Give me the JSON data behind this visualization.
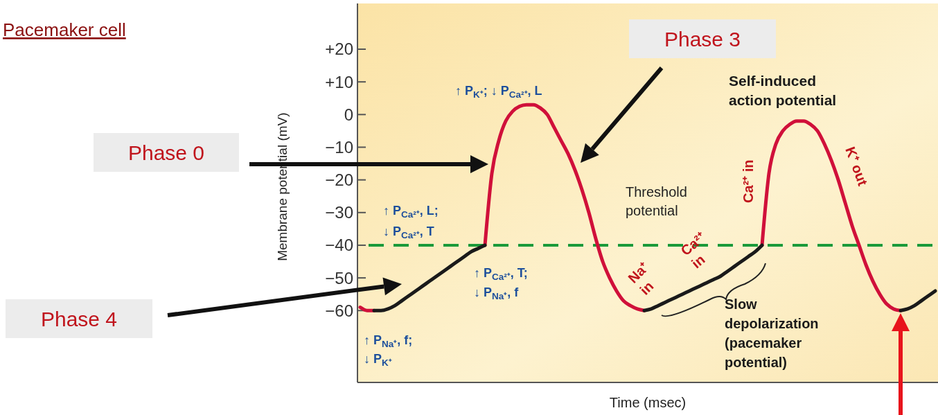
{
  "chart_data": {
    "type": "line",
    "title": "Pacemaker cell",
    "xlabel": "Time (msec)",
    "ylabel": "Membrane potential (mV)",
    "categories": [
      null,
      null,
      null,
      null,
      null,
      null,
      null,
      null,
      null,
      null,
      null,
      null,
      null,
      null,
      null,
      null,
      null,
      null,
      null,
      null,
      null,
      null,
      null,
      null,
      null,
      null,
      null,
      null,
      null,
      null,
      null,
      null,
      null,
      null,
      null,
      null,
      null,
      null,
      null,
      null,
      null,
      null,
      null,
      null,
      null,
      null,
      null,
      null,
      null,
      null,
      null,
      null,
      null,
      null,
      null,
      null,
      null,
      null,
      null,
      null,
      null,
      null,
      null,
      null,
      null,
      null,
      null,
      null,
      null,
      null,
      null,
      null,
      null,
      null,
      null,
      null,
      null,
      null,
      null,
      null,
      null,
      null,
      null,
      null
    ],
    "ylim": [
      -82,
      34
    ],
    "yticks": [
      {
        "value": 20,
        "label": "+20"
      },
      {
        "value": 10,
        "label": "+10"
      },
      0,
      {
        "value": -10,
        "label": "−10"
      },
      {
        "value": -20,
        "label": "−20"
      },
      {
        "value": -30,
        "label": "−30"
      },
      {
        "value": -40,
        "label": "−40"
      },
      {
        "value": -50,
        "label": "−50"
      },
      {
        "value": -60,
        "label": "−60"
      }
    ],
    "series": [
      {
        "color": "#d0103a",
        "values": [
          -59,
          -60,
          -60,
          null,
          null,
          null,
          null,
          null,
          null,
          null,
          null,
          null,
          null,
          null,
          null,
          null,
          null,
          null,
          -40,
          -18,
          -8,
          -2,
          1,
          2.5,
          3,
          3,
          2,
          0,
          -4,
          -8,
          -12,
          -17,
          -23,
          -30,
          -38,
          -45,
          -50,
          -54,
          -57,
          -58.5,
          -59.5,
          -60,
          null,
          null,
          null,
          null,
          null,
          null,
          null,
          null,
          null,
          null,
          null,
          null,
          null,
          null,
          null,
          null,
          -40,
          -18,
          -9,
          -5,
          -3,
          -2,
          -2,
          -3,
          -5,
          -9,
          -14,
          -20,
          -27,
          -34,
          -40,
          -46,
          -51,
          -55,
          -58,
          -59.5,
          -60,
          null,
          null,
          null,
          null,
          null
        ]
      },
      {
        "color": "#1a1a1a",
        "values": [
          null,
          null,
          -60,
          -60,
          -59.5,
          -58.5,
          -57,
          -55.5,
          -54,
          -52.5,
          -51,
          -49.5,
          -48,
          -46.5,
          -45,
          -43.5,
          -42,
          -41,
          -40,
          null,
          null,
          null,
          null,
          null,
          null,
          null,
          null,
          null,
          null,
          null,
          null,
          null,
          null,
          null,
          null,
          null,
          null,
          null,
          null,
          null,
          null,
          -60,
          -59.5,
          -58.5,
          -57.5,
          -56.5,
          -55.5,
          -54.5,
          -53.5,
          -52.5,
          -51.5,
          -50.5,
          -49.5,
          -48,
          -46.5,
          -45,
          -43.5,
          -42,
          -40,
          null,
          null,
          null,
          null,
          null,
          null,
          null,
          null,
          null,
          null,
          null,
          null,
          null,
          null,
          null,
          null,
          null,
          null,
          null,
          -60,
          -59.5,
          -58.5,
          -57,
          -55.5,
          -54
        ]
      }
    ],
    "ref_lines": [
      {
        "axis": "y",
        "value": -40,
        "label": "Threshold potential",
        "color": "#1a9a3a",
        "line_style": "dashed"
      }
    ],
    "annotations": [
      "Phase 0",
      "Phase 3",
      "Phase 4",
      "↑ P$_{K⁺}$; ↓ P$_{Ca²⁺}$, L",
      "↑ P$_{Ca²⁺}$, L;",
      "↓ P$_{Ca²⁺}$, T",
      "↑ P$_{Ca²⁺}$, T;",
      "↓ P$_{Na⁺}$, f",
      "↑ P$_{Na⁺}$, f;",
      "↓ P$_{K⁺}$",
      "Self-induced action potential",
      "Slow depolarization (pacemaker potential)",
      "Na⁺ in",
      "Ca²⁺ in",
      "Ca²⁺ in",
      "K⁺ out"
    ]
  }
}
